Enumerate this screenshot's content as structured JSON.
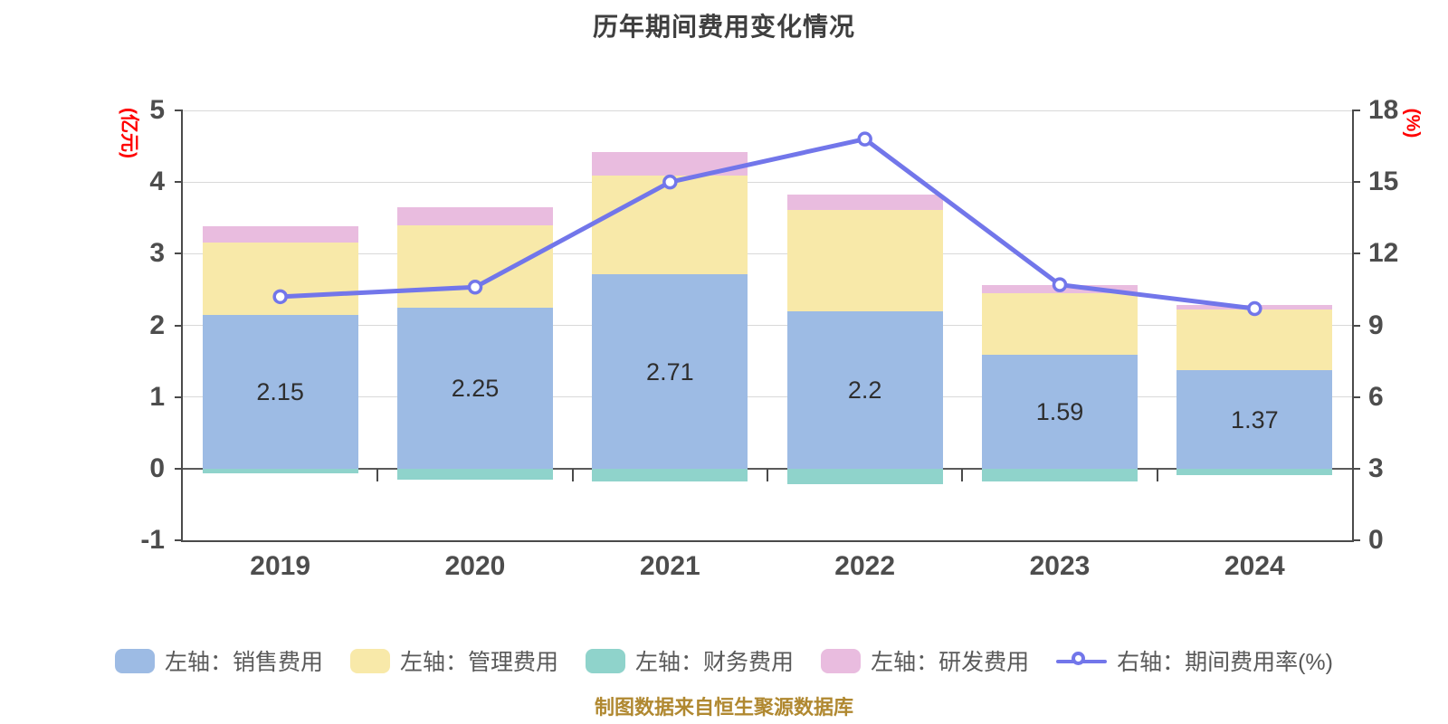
{
  "title": "历年期间费用变化情况",
  "footer": "制图数据来自恒生聚源数据库",
  "chart_data": {
    "type": "bar",
    "subtype": "stacked-bar-with-line",
    "categories": [
      "2019",
      "2020",
      "2021",
      "2022",
      "2023",
      "2024"
    ],
    "left_axis": {
      "unit": "(亿元)",
      "min": -1,
      "max": 5,
      "ticks": [
        5,
        4,
        3,
        2,
        1,
        0,
        -1
      ]
    },
    "right_axis": {
      "unit": "(%)",
      "min": 0,
      "max": 18,
      "ticks": [
        18,
        15,
        12,
        9,
        6,
        3,
        0
      ]
    },
    "grid": true,
    "legend_position": "bottom",
    "series": [
      {
        "name": "左轴：销售费用",
        "type": "bar",
        "color": "#9dbbe4",
        "values": [
          2.15,
          2.25,
          2.71,
          2.2,
          1.59,
          1.37
        ],
        "labels": [
          "2.15",
          "2.25",
          "2.71",
          "2.2",
          "1.59",
          "1.37"
        ]
      },
      {
        "name": "左轴：管理费用",
        "type": "bar",
        "color": "#f8e9a9",
        "values": [
          1.01,
          1.15,
          1.38,
          1.41,
          0.86,
          0.85
        ]
      },
      {
        "name": "左轴：财务费用",
        "type": "bar",
        "color": "#8fd3cb",
        "values": [
          -0.06,
          -0.15,
          -0.18,
          -0.22,
          -0.18,
          -0.09
        ]
      },
      {
        "name": "左轴：研发费用",
        "type": "bar",
        "color": "#e9bcdf",
        "values": [
          0.22,
          0.25,
          0.33,
          0.21,
          0.11,
          0.06
        ]
      },
      {
        "name": "右轴：期间费用率(%)",
        "type": "line",
        "color": "#7276ea",
        "values": [
          10.2,
          10.6,
          15.0,
          16.8,
          10.7,
          9.7
        ]
      }
    ],
    "colors": {
      "axis_text": "#4d4d4d",
      "axis_line": "#4a4a4a",
      "gridline": "#d9d9d9",
      "zero_line": "#5a5a5a",
      "unit_text": "#ff0000",
      "title_text": "#3f3f3f",
      "footer_text": "#b08830",
      "background": "#ffffff"
    }
  }
}
